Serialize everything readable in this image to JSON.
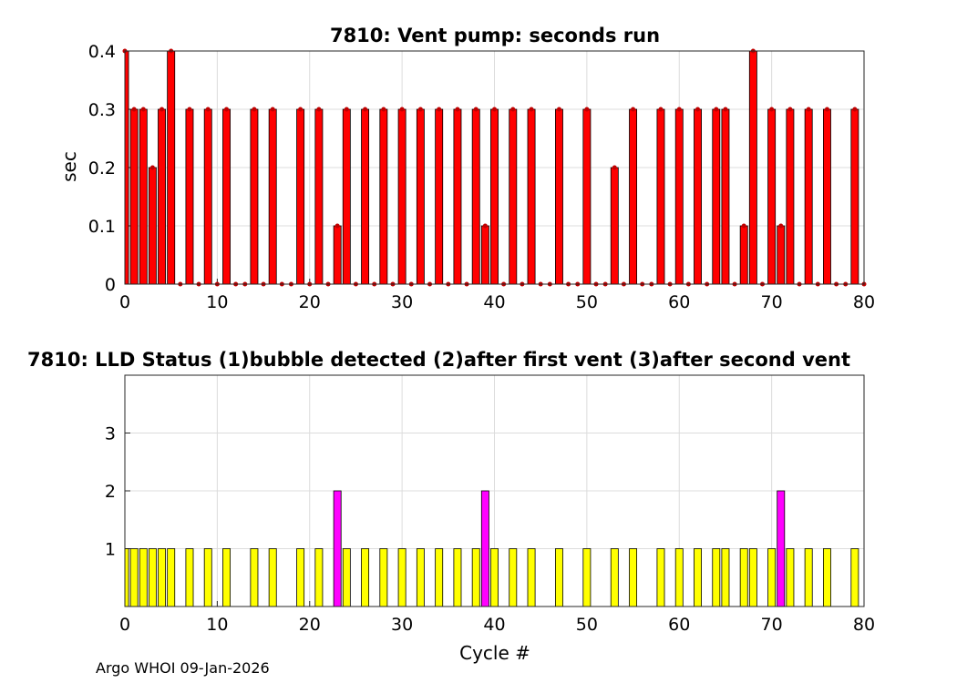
{
  "footer": "Argo WHOI 09-Jan-2026",
  "chart_data": [
    {
      "type": "bar",
      "title": "7810: Vent pump: seconds run",
      "xlabel": "",
      "ylabel": "sec",
      "xlim": [
        0,
        80
      ],
      "ylim": [
        0,
        0.4
      ],
      "xticks": [
        "0",
        "10",
        "20",
        "30",
        "40",
        "50",
        "60",
        "70",
        "80"
      ],
      "yticks": [
        "0",
        "0.1",
        "0.2",
        "0.3",
        "0.4"
      ],
      "grid": true,
      "bar_color": "#ff0000",
      "x": [
        0,
        1,
        2,
        3,
        4,
        5,
        6,
        7,
        8,
        9,
        10,
        11,
        12,
        13,
        14,
        15,
        16,
        17,
        18,
        19,
        20,
        21,
        22,
        23,
        24,
        25,
        26,
        27,
        28,
        29,
        30,
        31,
        32,
        33,
        34,
        35,
        36,
        37,
        38,
        39,
        40,
        41,
        42,
        43,
        44,
        45,
        46,
        47,
        48,
        49,
        50,
        51,
        52,
        53,
        54,
        55,
        56,
        57,
        58,
        59,
        60,
        61,
        62,
        63,
        64,
        65,
        66,
        67,
        68,
        69,
        70,
        71,
        72,
        73,
        74,
        75,
        76,
        77,
        78,
        79,
        80
      ],
      "values": [
        0.4,
        0.3,
        0.3,
        0.2,
        0.3,
        0.4,
        0,
        0.3,
        0,
        0.3,
        0,
        0.3,
        0,
        0,
        0.3,
        0,
        0.3,
        0,
        0,
        0.3,
        0,
        0.3,
        0,
        0.1,
        0.3,
        0,
        0.3,
        0,
        0.3,
        0,
        0.3,
        0,
        0.3,
        0,
        0.3,
        0,
        0.3,
        0,
        0.3,
        0.1,
        0.3,
        0,
        0.3,
        0,
        0.3,
        0,
        0,
        0.3,
        0,
        0,
        0.3,
        0,
        0,
        0.2,
        0,
        0.3,
        0,
        0,
        0.3,
        0,
        0.3,
        0,
        0.3,
        0,
        0.3,
        0.3,
        0,
        0.1,
        0.4,
        0,
        0.3,
        0.1,
        0.3,
        0,
        0.3,
        0,
        0.3,
        0,
        0,
        0.3,
        0
      ]
    },
    {
      "type": "bar",
      "title": "7810: LLD Status   (1)bubble detected   (2)after first vent  (3)after second vent",
      "xlabel": "Cycle #",
      "ylabel": "",
      "xlim": [
        0,
        80
      ],
      "ylim": [
        0,
        4
      ],
      "xticks": [
        "0",
        "10",
        "20",
        "30",
        "40",
        "50",
        "60",
        "70",
        "80"
      ],
      "yticks": [
        "1",
        "2",
        "3"
      ],
      "grid": true,
      "colors": {
        "1": "#ffff00",
        "2": "#ff00ff"
      },
      "x": [
        0,
        1,
        2,
        3,
        4,
        5,
        6,
        7,
        8,
        9,
        10,
        11,
        12,
        13,
        14,
        15,
        16,
        17,
        18,
        19,
        20,
        21,
        22,
        23,
        24,
        25,
        26,
        27,
        28,
        29,
        30,
        31,
        32,
        33,
        34,
        35,
        36,
        37,
        38,
        39,
        40,
        41,
        42,
        43,
        44,
        45,
        46,
        47,
        48,
        49,
        50,
        51,
        52,
        53,
        54,
        55,
        56,
        57,
        58,
        59,
        60,
        61,
        62,
        63,
        64,
        65,
        66,
        67,
        68,
        69,
        70,
        71,
        72,
        73,
        74,
        75,
        76,
        77,
        78,
        79,
        80
      ],
      "values": [
        1,
        1,
        1,
        1,
        1,
        1,
        0,
        1,
        0,
        1,
        0,
        1,
        0,
        0,
        1,
        0,
        1,
        0,
        0,
        1,
        0,
        1,
        0,
        2,
        1,
        0,
        1,
        0,
        1,
        0,
        1,
        0,
        1,
        0,
        1,
        0,
        1,
        0,
        1,
        2,
        1,
        0,
        1,
        0,
        1,
        0,
        0,
        1,
        0,
        0,
        1,
        0,
        0,
        1,
        0,
        1,
        0,
        0,
        1,
        0,
        1,
        0,
        1,
        0,
        1,
        1,
        0,
        1,
        1,
        0,
        1,
        2,
        1,
        0,
        1,
        0,
        1,
        0,
        0,
        1,
        0
      ]
    }
  ]
}
